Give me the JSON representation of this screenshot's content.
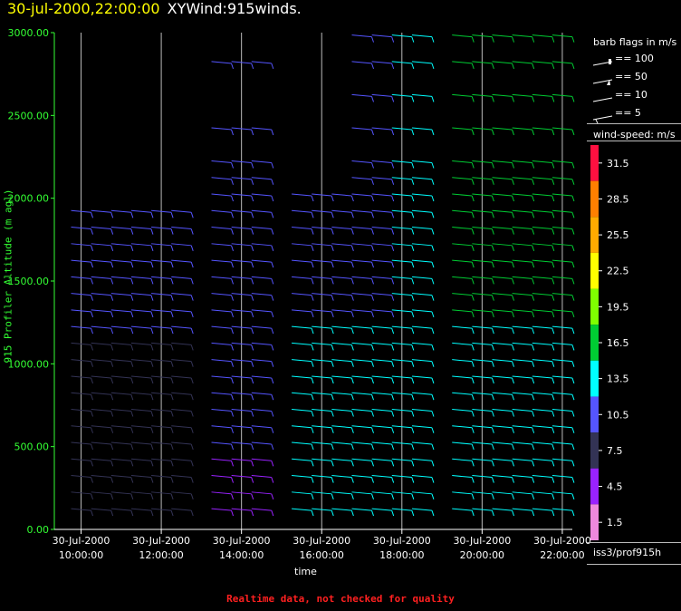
{
  "title": {
    "timestamp": "30-jul-2000,22:00:00",
    "name": "XYWind:915winds."
  },
  "footer": "Realtime data, not checked for quality",
  "station": "iss3/prof915h",
  "legend": {
    "flags_title": "barb flags in m/s",
    "flags": [
      "== 100",
      "== 50",
      "== 10",
      "== 5"
    ],
    "speed_title": "wind-speed: m/s",
    "speed_bins": [
      {
        "label": "31.5",
        "color": "#ff1040"
      },
      {
        "label": "28.5",
        "color": "#ff7f00"
      },
      {
        "label": "25.5",
        "color": "#ffaa00"
      },
      {
        "label": "22.5",
        "color": "#ffff00"
      },
      {
        "label": "19.5",
        "color": "#7fff00"
      },
      {
        "label": "16.5",
        "color": "#00cc33"
      },
      {
        "label": "13.5",
        "color": "#00ffff"
      },
      {
        "label": "10.5",
        "color": "#5555ff"
      },
      {
        "label": "7.5",
        "color": "#333355"
      },
      {
        "label": "4.5",
        "color": "#9922ff"
      },
      {
        "label": "1.5",
        "color": "#ee88dd"
      }
    ]
  },
  "chart_data": {
    "type": "scatter",
    "title": "30-jul-2000,22:00:00  XYWind:915winds.",
    "xlabel": "time",
    "ylabel": "915 Profiler Altitude (m agl)",
    "ylim": [
      0,
      3000
    ],
    "xlim": [
      "30-Jul-2000 09:20:00",
      "30-Jul-2000 22:15:00"
    ],
    "yticks": [
      "0.00",
      "500.00",
      "1000.00",
      "1500.00",
      "2000.00",
      "2500.00",
      "3000.00"
    ],
    "xticks": [
      {
        "date": "30-Jul-2000",
        "time": "10:00:00"
      },
      {
        "date": "30-Jul-2000",
        "time": "12:00:00"
      },
      {
        "date": "30-Jul-2000",
        "time": "14:00:00"
      },
      {
        "date": "30-Jul-2000",
        "time": "16:00:00"
      },
      {
        "date": "30-Jul-2000",
        "time": "18:00:00"
      },
      {
        "date": "30-Jul-2000",
        "time": "20:00:00"
      },
      {
        "date": "30-Jul-2000",
        "time": "22:00:00"
      }
    ],
    "grid": "vertical",
    "legend": "right",
    "profile_times": [
      "10:00",
      "10:30",
      "11:00",
      "11:30",
      "12:00",
      "12:30",
      "13:30",
      "14:00",
      "14:30",
      "15:30",
      "16:00",
      "16:30",
      "17:00",
      "17:30",
      "18:00",
      "18:30",
      "19:30",
      "20:00",
      "20:30",
      "21:00",
      "21:30",
      "22:00"
    ],
    "altitudes_m": [
      120,
      220,
      320,
      420,
      520,
      620,
      720,
      820,
      920,
      1020,
      1120,
      1220,
      1320,
      1420,
      1520,
      1620,
      1720,
      1820,
      1920,
      2020,
      2120,
      2220,
      2420,
      2620,
      2820,
      2980
    ],
    "speed_by_segment_mps": {
      "10:00-13:00": {
        "below_500m": 6,
        "500-1200m": 8,
        "above_1200m": 10
      },
      "13:30-15:00": {
        "below_500m": 5,
        "above_500m": 10
      },
      "15:30-17:30": {
        "below_1300m": 12,
        "above_1300m": 10
      },
      "18:00-19:00": {
        "below_1300m": 13,
        "above_1300m": 14
      },
      "19:30-22:00": {
        "below_1300m": 14,
        "above_1300m": 15
      }
    }
  }
}
